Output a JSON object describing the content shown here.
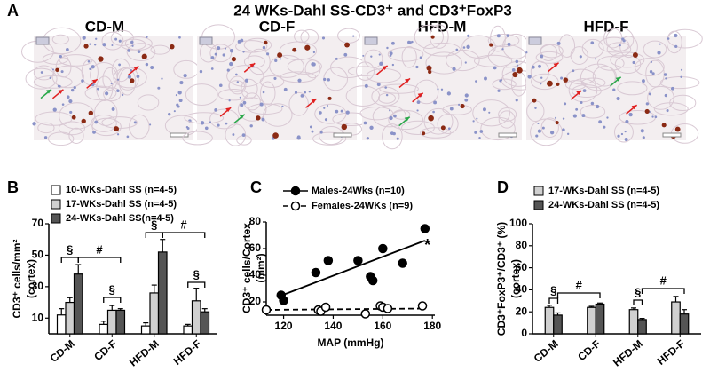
{
  "title": "24 WKs-Dahl SS-CD3⁺ and CD3⁺FoxP3",
  "panel_a": {
    "label": "A",
    "images": [
      "CD-M",
      "CD-F",
      "HFD-M",
      "HFD-F"
    ]
  },
  "chart_data": [
    {
      "type": "bar",
      "panel": "B",
      "ylabel": "CD3⁺ cells/mm²",
      "ylabel2": "(cortex)",
      "categories": [
        "CD-M",
        "CD-F",
        "HFD-M",
        "HFD-F"
      ],
      "series": [
        {
          "name": "10-WKs-Dahl SS (n=4-5)",
          "color": "#ffffff",
          "values": [
            12,
            6,
            5,
            5
          ],
          "errors": [
            4,
            2,
            2,
            1
          ]
        },
        {
          "name": "17-WKs-Dahl SS (n=4-5)",
          "color": "#d0d0d0",
          "values": [
            20,
            15,
            26,
            21
          ],
          "errors": [
            3,
            3,
            5,
            8
          ]
        },
        {
          "name": "24-WKs-Dahl SS(n=4-5)",
          "color": "#555555",
          "values": [
            38,
            15,
            52,
            14
          ],
          "errors": [
            6,
            1,
            8,
            2
          ]
        }
      ],
      "ylim": [
        0,
        70
      ],
      "yticks": [
        10,
        30,
        50,
        70
      ],
      "annotations": [
        "§",
        "#",
        "§",
        "§",
        "#",
        "§"
      ]
    },
    {
      "type": "scatter",
      "panel": "C",
      "ylabel": "CD3⁺ cells/Cortex",
      "ylabel2": "(mm²)",
      "xlabel": "MAP (mmHg)",
      "series": [
        {
          "name": "Males-24Wks (n=10)",
          "color": "#000000",
          "marker": "filled",
          "linestyle": "solid",
          "x": [
            119,
            120,
            133,
            138,
            150,
            155,
            156,
            160,
            168,
            177
          ],
          "values": [
            25,
            21,
            42,
            51,
            51,
            39,
            36,
            60,
            49,
            75
          ],
          "trend": {
            "x": [
              118,
              177
            ],
            "values": [
              24,
              66
            ]
          }
        },
        {
          "name": "Females-24WKs (n=9)",
          "color": "#000000",
          "marker": "open",
          "linestyle": "dashed",
          "x": [
            113,
            134,
            135,
            137,
            153,
            159,
            160,
            162,
            176
          ],
          "values": [
            14,
            14,
            13,
            16,
            11,
            17,
            16,
            15,
            17
          ],
          "trend": {
            "x": [
              113,
              177
            ],
            "values": [
              14,
              15
            ]
          }
        }
      ],
      "xlim": [
        113,
        181
      ],
      "xticks": [
        120,
        140,
        160,
        180
      ],
      "ylim": [
        10,
        80
      ],
      "yticks": [
        20,
        40,
        60,
        80
      ],
      "annotations": [
        "*"
      ]
    },
    {
      "type": "bar",
      "panel": "D",
      "ylabel": "CD3⁺FoxP3⁺/CD3⁺ (%)",
      "ylabel2": "(cortex)",
      "categories": [
        "CD-M",
        "CD-F",
        "HFD-M",
        "HFD-F"
      ],
      "series": [
        {
          "name": "17-WKs-Dahl SS (n=4-5)",
          "color": "#d0d0d0",
          "values": [
            24,
            24,
            22,
            29
          ],
          "errors": [
            2,
            1,
            1.5,
            5
          ]
        },
        {
          "name": "24-WKs-Dahl SS (n=4-5)",
          "color": "#555555",
          "values": [
            17,
            27,
            13,
            18
          ],
          "errors": [
            2,
            1,
            1,
            4
          ]
        }
      ],
      "ylim": [
        0,
        100
      ],
      "yticks": [
        0,
        20,
        40,
        60,
        80,
        100
      ],
      "annotations": [
        "§",
        "#",
        "§",
        "#"
      ]
    }
  ]
}
